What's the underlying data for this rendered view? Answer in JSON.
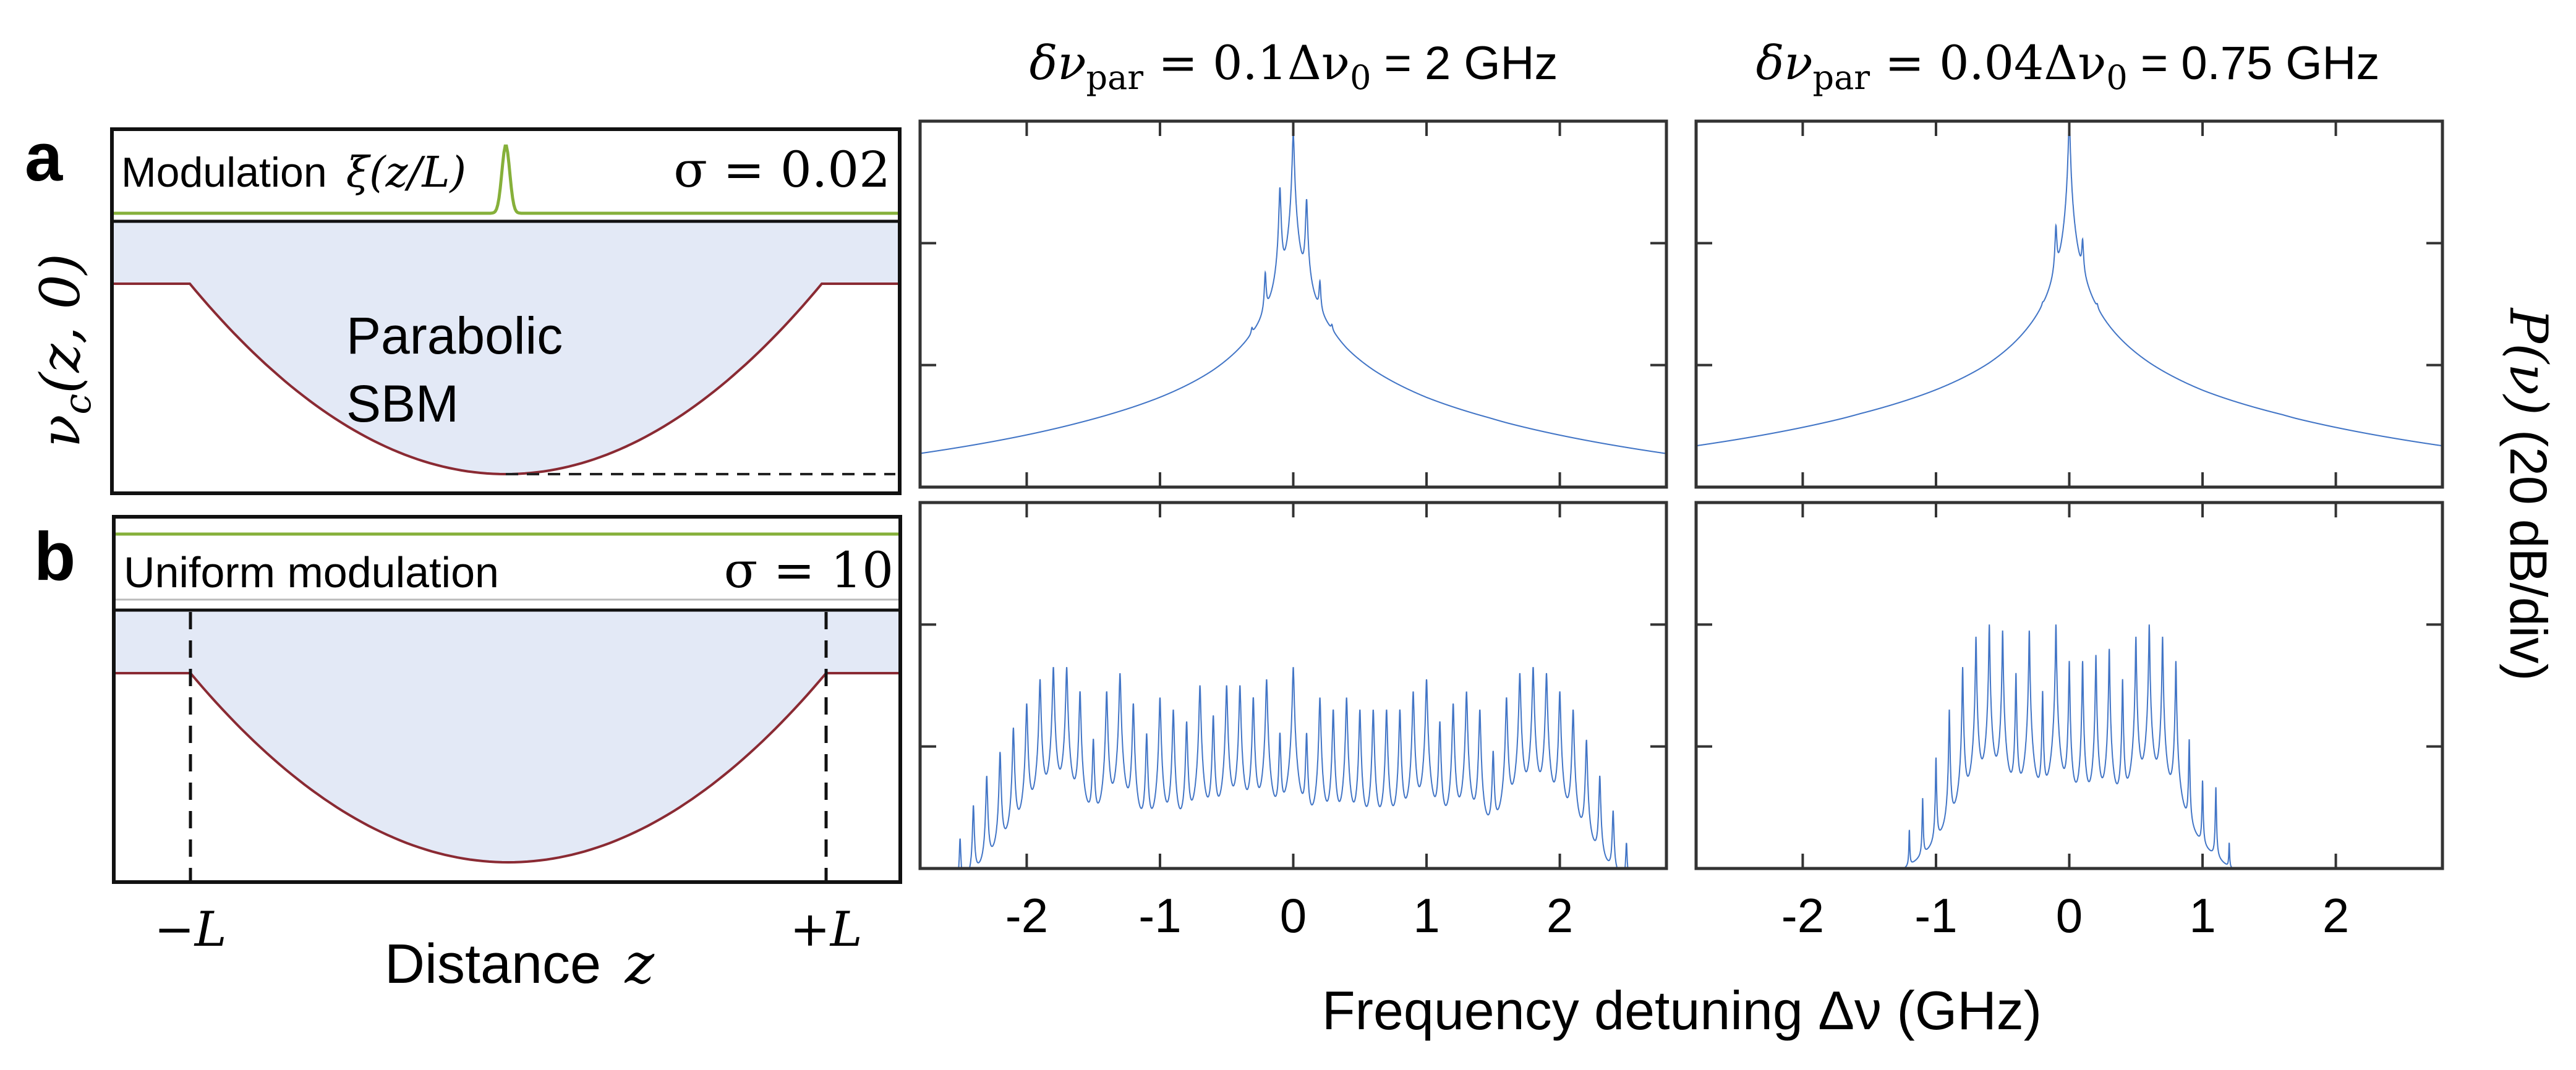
{
  "colors": {
    "spectrum": "#4275c6",
    "fill": "#e3e9f6",
    "potential": "#8a2a33",
    "modulation": "#86b03a",
    "frame": "#333333"
  },
  "schematic": {
    "panel_a": {
      "label": "a",
      "modulation_label": "Modulation",
      "modulation_fn": "ξ(z/L)",
      "sigma_label": "σ = 0.02",
      "structure_line1": "Parabolic",
      "structure_line2": "SBM"
    },
    "panel_b": {
      "label": "b",
      "modulation_label": "Uniform modulation",
      "sigma_label": "σ = 10"
    },
    "ylabel_main": "ν",
    "ylabel_sub": "c",
    "ylabel_args": "(z, 0)",
    "xtick_left": "−L",
    "xtick_right": "+L",
    "xlabel": "Distance",
    "xlabel_var": "z"
  },
  "columns": [
    {
      "t1": "δν",
      "sub1": "par",
      "t2": " = 0.1Δν",
      "sub2": "0",
      "t3": " = 2 GHz"
    },
    {
      "t1": "δν",
      "sub1": "par",
      "t2": " = 0.04Δν",
      "sub2": "0",
      "t3": " = 0.75 GHz"
    }
  ],
  "ylabel": {
    "sym": "P(ν)",
    "unit": " (20 dB/div)"
  },
  "xlabel": "Frequency detuning Δν (GHz)",
  "chart_data": [
    {
      "type": "line",
      "panel": "a",
      "column": "δν_par = 2 GHz",
      "xlim": [
        -2.8,
        2.8
      ],
      "ylim_dB": [
        -60,
        0
      ],
      "xticks": [
        -2,
        -1,
        0,
        1,
        2
      ],
      "xtick_labels": [
        "-2",
        "-1",
        "0",
        "1",
        "2"
      ],
      "ydiv_dB": 20,
      "envelope": {
        "x": [
          -1.6,
          -1.36,
          -1,
          -0.6,
          -0.3,
          -0.25,
          0,
          0.3,
          0.4,
          0.6,
          1,
          1.47,
          1.6
        ],
        "dB": [
          -62,
          -60,
          -57.4,
          -53.5,
          -48,
          -47,
          -40,
          -44,
          -48,
          -51.5,
          -56.7,
          -60,
          -62
        ]
      },
      "peaks": {
        "x": [
          -0.31,
          -0.21,
          -0.1,
          0,
          0.1,
          0.2,
          0.29
        ],
        "dB": [
          -41,
          -26,
          -11,
          -2,
          -13,
          -28,
          -41
        ]
      },
      "peak_width_GHz": 0.006
    },
    {
      "type": "line",
      "panel": "a",
      "column": "δν_par = 0.75 GHz",
      "xlim": [
        -2.8,
        2.8
      ],
      "ylim_dB": [
        -60,
        0
      ],
      "xticks": [
        -2,
        -1,
        0,
        1,
        2
      ],
      "xtick_labels": [
        "-2",
        "-1",
        "0",
        "1",
        "2"
      ],
      "ydiv_dB": 20,
      "envelope": {
        "x": [
          -1.7,
          -1.57,
          -1,
          -0.6,
          -0.3,
          -0.2,
          0,
          0.2,
          0.3,
          0.6,
          1,
          1.6,
          1.7
        ],
        "dB": [
          -62,
          -60,
          -56,
          -52,
          -45.4,
          -44,
          -38,
          -43,
          -45,
          -51,
          -57,
          -60,
          -62
        ]
      },
      "peaks": {
        "x": [
          -0.2,
          -0.1,
          0,
          0.1,
          0.21
        ],
        "dB": [
          -41,
          -18,
          0,
          -21,
          -39
        ]
      },
      "peak_width_GHz": 0.006
    },
    {
      "type": "line",
      "panel": "b",
      "column": "δν_par = 2 GHz",
      "xlim": [
        -2.8,
        2.8
      ],
      "ylim_dB": [
        -60,
        0
      ],
      "xticks": [
        -2,
        -1,
        0,
        1,
        2
      ],
      "xtick_labels": [
        "-2",
        "-1",
        "0",
        "1",
        "2"
      ],
      "ydiv_dB": 20,
      "comb": {
        "start": -2.5,
        "step": 0.1,
        "dB": [
          -56,
          -50,
          -45,
          -41,
          -37,
          -33,
          -29,
          -27,
          -27,
          -31,
          -39,
          -31,
          -28,
          -33,
          -38,
          -32,
          -34,
          -36,
          -30,
          -35,
          -30,
          -30,
          -32,
          -29,
          -38,
          -27,
          -38,
          -32,
          -34,
          -32,
          -34,
          -34,
          -34,
          -34,
          -31,
          -29,
          -36,
          -33,
          -31,
          -34,
          -41,
          -32,
          -28,
          -27,
          -28,
          -31,
          -34,
          -39,
          -45,
          -51,
          -57
        ]
      },
      "peak_width_GHz": 0.005
    },
    {
      "type": "line",
      "panel": "b",
      "column": "δν_par = 0.75 GHz",
      "xlim": [
        -2.8,
        2.8
      ],
      "ylim_dB": [
        -60,
        0
      ],
      "xticks": [
        -2,
        -1,
        0,
        1,
        2
      ],
      "xtick_labels": [
        "-2",
        "-1",
        "0",
        "1",
        "2"
      ],
      "ydiv_dB": 20,
      "comb": {
        "start": -1.2,
        "step": 0.1,
        "dB": [
          -55,
          -49,
          -42,
          -34,
          -27,
          -22,
          -20,
          -21,
          -28,
          -21,
          -31,
          -20,
          -26,
          -26,
          -25,
          -24,
          -29,
          -22,
          -20,
          -22,
          -26,
          -39,
          -46,
          -47,
          -58
        ]
      },
      "peak_width_GHz": 0.003
    }
  ]
}
